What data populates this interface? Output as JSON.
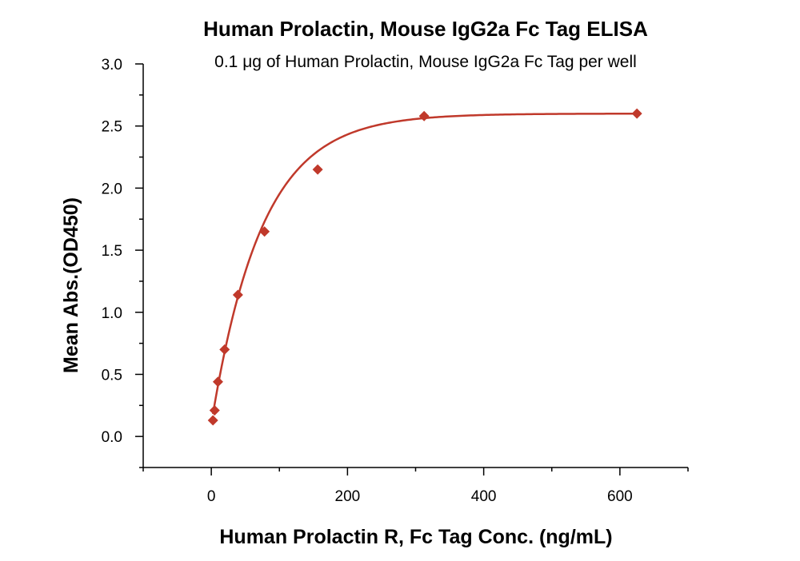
{
  "chart_data": {
    "type": "scatter",
    "title": "Human Prolactin, Mouse IgG2a Fc Tag ELISA",
    "subtitle": "0.1 μg of Human Prolactin, Mouse IgG2a Fc Tag  per well",
    "xlabel": "Human Prolactin R, Fc Tag Conc. (ng/mL)",
    "ylabel": "Mean Abs.(OD450)",
    "xlim": [
      -100,
      700
    ],
    "ylim": [
      -0.25,
      3.0
    ],
    "xticks": [
      0,
      200,
      400,
      600
    ],
    "yticks": [
      0.0,
      0.5,
      1.0,
      1.5,
      2.0,
      2.5,
      3.0
    ],
    "xtick_labels": [
      "0",
      "200",
      "400",
      "600"
    ],
    "ytick_labels": [
      "0.0",
      "0.5",
      "1.0",
      "1.5",
      "2.0",
      "2.5",
      "3.0"
    ],
    "grid": false,
    "marker_color": "#c0392b",
    "curve_color": "#c0392b",
    "series": [
      {
        "points": [
          {
            "x": 2.44,
            "y": 0.13
          },
          {
            "x": 4.88,
            "y": 0.21
          },
          {
            "x": 9.77,
            "y": 0.44
          },
          {
            "x": 19.53,
            "y": 0.7
          },
          {
            "x": 39.06,
            "y": 1.14
          },
          {
            "x": 78.13,
            "y": 1.65
          },
          {
            "x": 156.25,
            "y": 2.15
          },
          {
            "x": 312.5,
            "y": 2.58
          },
          {
            "x": 625,
            "y": 2.6
          }
        ],
        "fit": {
          "bottom": 0.1,
          "top": 2.6,
          "k": 0.0135
        }
      }
    ]
  }
}
